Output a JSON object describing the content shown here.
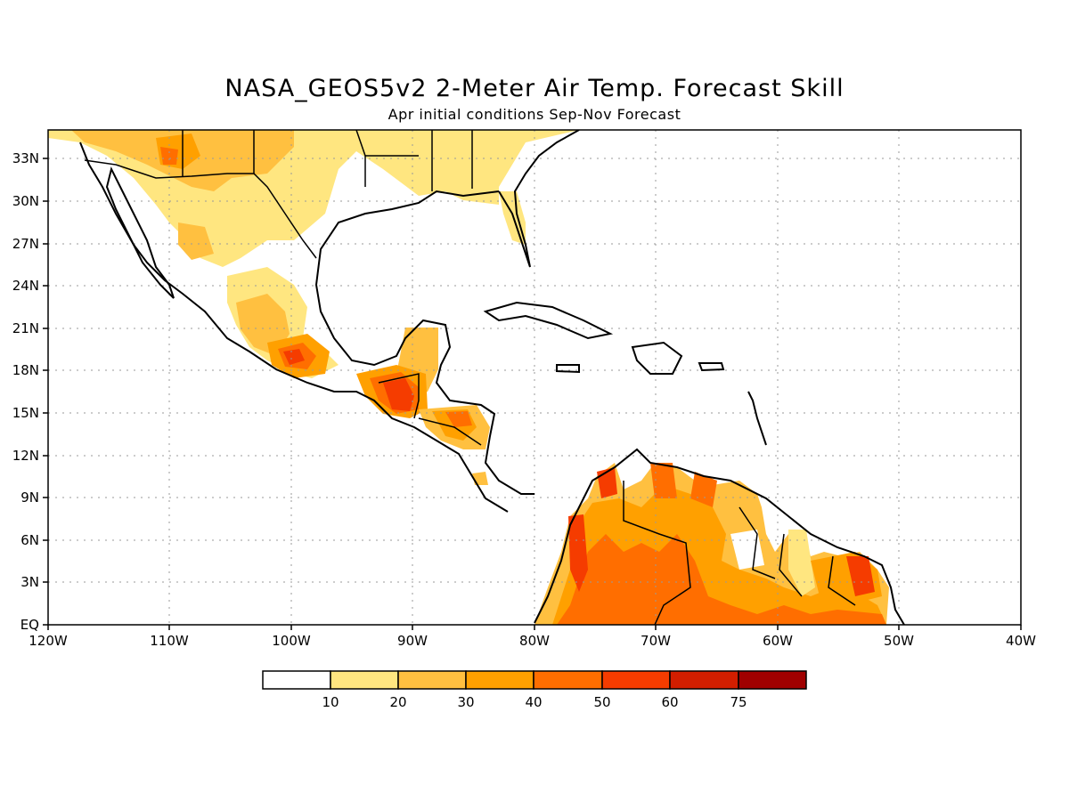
{
  "title": "NASA_GEOS5v2 2-Meter Air Temp. Forecast Skill",
  "subtitle": "Apr initial conditions  Sep-Nov Forecast",
  "axes": {
    "lon_labels": [
      "120W",
      "110W",
      "100W",
      "90W",
      "80W",
      "70W",
      "60W",
      "50W",
      "40W"
    ],
    "lat_labels": [
      "EQ",
      "3N",
      "6N",
      "9N",
      "12N",
      "15N",
      "18N",
      "21N",
      "24N",
      "27N",
      "30N",
      "33N"
    ]
  },
  "legend": {
    "labels": [
      "10",
      "20",
      "30",
      "40",
      "50",
      "60",
      "75"
    ],
    "colors": [
      "#ffffff",
      "#ffe680",
      "#ffc040",
      "#ffa000",
      "#ff6e00",
      "#f53c00",
      "#d21e00",
      "#a00000"
    ]
  },
  "chart_data": {
    "type": "heatmap",
    "title": "NASA_GEOS5v2 2-Meter Air Temp. Forecast Skill",
    "subtitle": "Apr initial conditions  Sep-Nov Forecast",
    "xlim": [
      -120,
      -40
    ],
    "ylim": [
      0,
      35
    ],
    "grid": true,
    "colorbar_levels": [
      10,
      20,
      30,
      40,
      50,
      60,
      75
    ],
    "regions": [
      {
        "name": "Northern Mexico / US Southwest",
        "lon": [
          -118,
          -95
        ],
        "lat": [
          28,
          35
        ],
        "level": 20
      },
      {
        "name": "Central Mexico",
        "lon": [
          -103,
          -97
        ],
        "lat": [
          17,
          24
        ],
        "level": 30
      },
      {
        "name": "Southern Mexico",
        "lon": [
          -101,
          -98
        ],
        "lat": [
          18,
          19.5
        ],
        "level": 50
      },
      {
        "name": "Guatemala / Yucatan",
        "lon": [
          -93,
          -89
        ],
        "lat": [
          14,
          21
        ],
        "level": 50
      },
      {
        "name": "Honduras",
        "lon": [
          -89,
          -84
        ],
        "lat": [
          13,
          16
        ],
        "level": 40
      },
      {
        "name": "Colombia / Venezuela",
        "lon": [
          -78,
          -60
        ],
        "lat": [
          0,
          11
        ],
        "level": 40
      },
      {
        "name": "Western Colombia",
        "lon": [
          -78,
          -76
        ],
        "lat": [
          2,
          7
        ],
        "level": 50
      },
      {
        "name": "French Guiana",
        "lon": [
          -54,
          -52
        ],
        "lat": [
          2,
          5
        ],
        "level": 50
      }
    ]
  }
}
